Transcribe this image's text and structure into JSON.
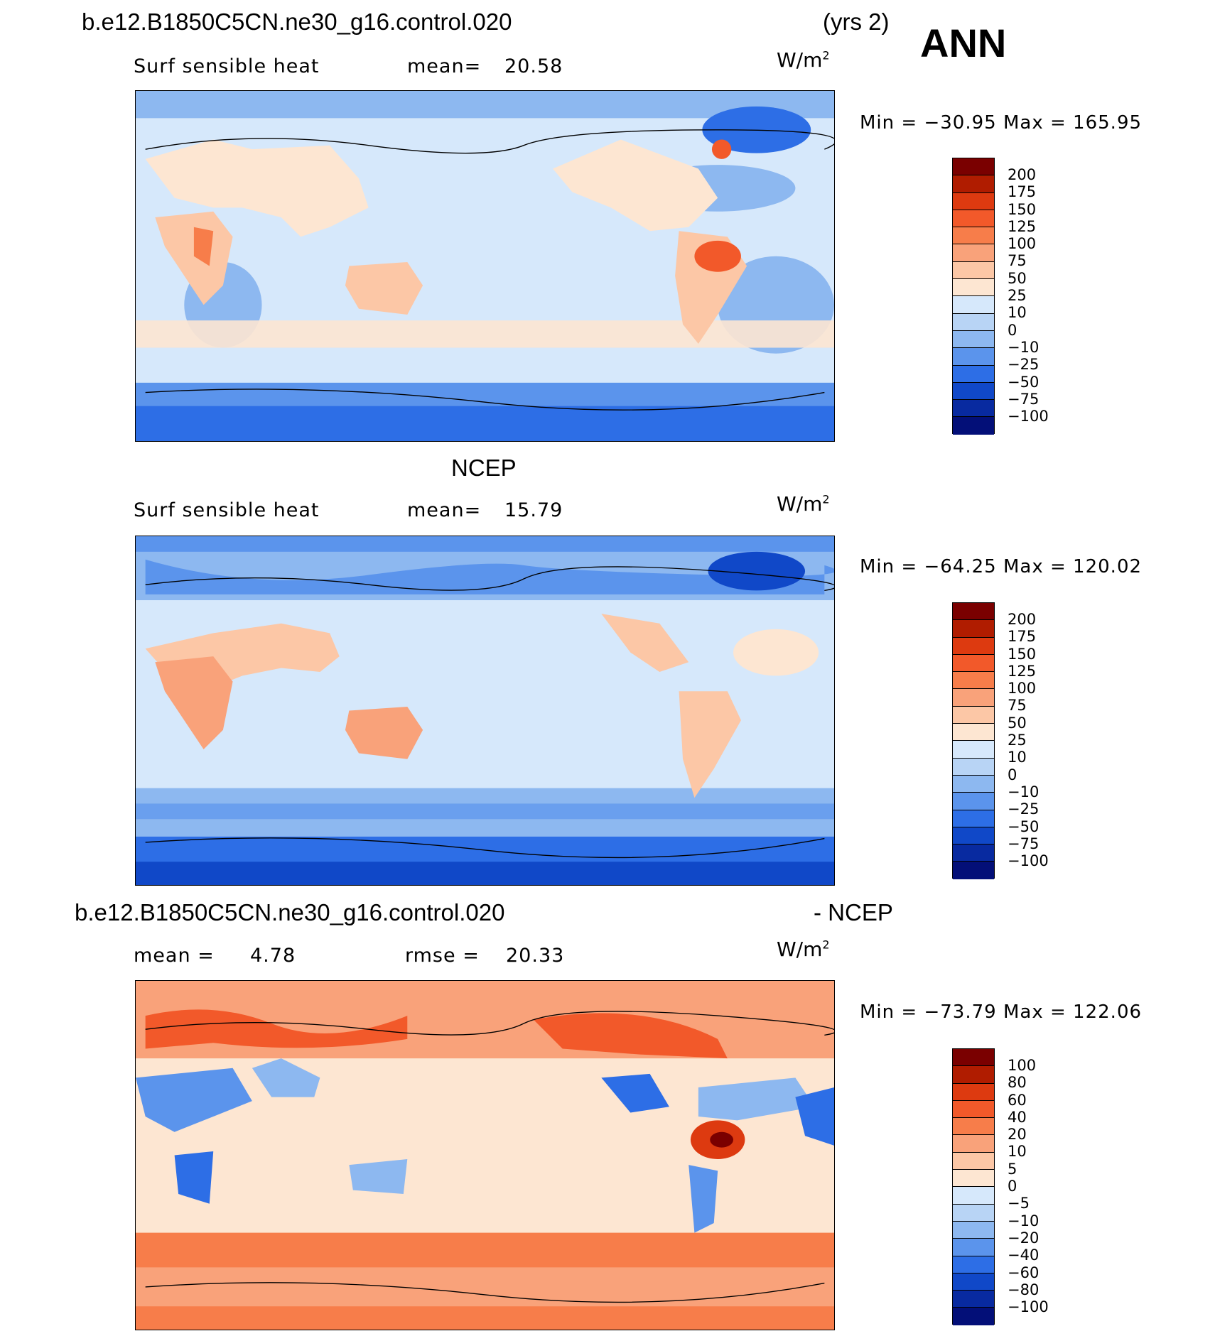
{
  "header": {
    "case_name": "b.e12.B1850C5CN.ne30_g16.control.020",
    "years": "(yrs 2)",
    "season": "ANN"
  },
  "panels": [
    {
      "title": "",
      "variable": "Surf sensible heat",
      "stat1_label": "mean=",
      "stat1_value": "20.58",
      "stat2_label": "",
      "stat2_value": "",
      "units_base": "W/m",
      "units_exp": "2",
      "min_label": "Min",
      "min_value": "−30.95",
      "max_label": "Max",
      "max_value": "165.95",
      "colorbar": {
        "labels": [
          "200",
          "175",
          "150",
          "125",
          "100",
          "75",
          "50",
          "25",
          "10",
          "0",
          "−10",
          "−25",
          "−50",
          "−75",
          "−100"
        ],
        "colors": [
          "#7a0000",
          "#b01c00",
          "#dd3a10",
          "#f2592a",
          "#f77d4a",
          "#f9a27a",
          "#fcc7a6",
          "#fde6d2",
          "#d6e8fb",
          "#b8d4f5",
          "#8db8f0",
          "#5b94ec",
          "#2d6ee6",
          "#1048c8",
          "#082aa0",
          "#030f78"
        ]
      }
    },
    {
      "title": "NCEP",
      "variable": "Surf sensible heat",
      "stat1_label": "mean=",
      "stat1_value": "15.79",
      "stat2_label": "",
      "stat2_value": "",
      "units_base": "W/m",
      "units_exp": "2",
      "min_label": "Min",
      "min_value": "−64.25",
      "max_label": "Max",
      "max_value": "120.02",
      "colorbar": {
        "labels": [
          "200",
          "175",
          "150",
          "125",
          "100",
          "75",
          "50",
          "25",
          "10",
          "0",
          "−10",
          "−25",
          "−50",
          "−75",
          "−100"
        ],
        "colors": [
          "#7a0000",
          "#b01c00",
          "#dd3a10",
          "#f2592a",
          "#f77d4a",
          "#f9a27a",
          "#fcc7a6",
          "#fde6d2",
          "#d6e8fb",
          "#b8d4f5",
          "#8db8f0",
          "#5b94ec",
          "#2d6ee6",
          "#1048c8",
          "#082aa0",
          "#030f78"
        ]
      }
    },
    {
      "title_left": "b.e12.B1850C5CN.ne30_g16.control.020",
      "title_right": "- NCEP",
      "variable": "",
      "stat1_label": "mean =",
      "stat1_value": "4.78",
      "stat2_label": "rmse =",
      "stat2_value": "20.33",
      "units_base": "W/m",
      "units_exp": "2",
      "min_label": "Min",
      "min_value": "−73.79",
      "max_label": "Max",
      "max_value": "122.06",
      "colorbar": {
        "labels": [
          "100",
          "80",
          "60",
          "40",
          "20",
          "10",
          "5",
          "0",
          "−5",
          "−10",
          "−20",
          "−40",
          "−60",
          "−80",
          "−100"
        ],
        "colors": [
          "#7a0000",
          "#b01c00",
          "#dd3a10",
          "#f2592a",
          "#f77d4a",
          "#f9a27a",
          "#fcc7a6",
          "#fde6d2",
          "#d6e8fb",
          "#b8d4f5",
          "#8db8f0",
          "#5b94ec",
          "#2d6ee6",
          "#1048c8",
          "#082aa0",
          "#030f78"
        ]
      }
    }
  ]
}
